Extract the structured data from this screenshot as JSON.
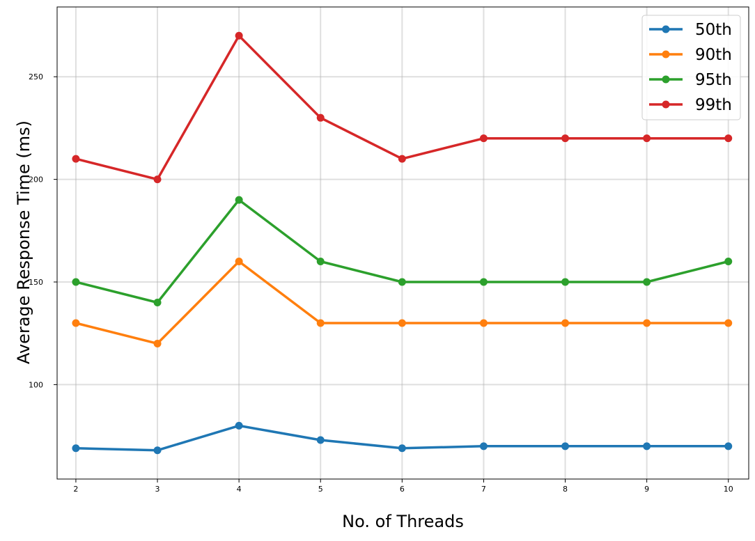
{
  "chart_data": {
    "type": "line",
    "title": "",
    "xlabel": "No. of Threads",
    "ylabel": "Average Response Time (ms)",
    "x": [
      2,
      3,
      4,
      5,
      6,
      7,
      8,
      9,
      10
    ],
    "xlim": [
      1.77,
      10.25
    ],
    "ylim": [
      54,
      284
    ],
    "xticks": [
      2,
      3,
      4,
      5,
      6,
      7,
      8,
      9,
      10
    ],
    "yticks": [
      100,
      150,
      200,
      250
    ],
    "grid": true,
    "legend_position": "top-right",
    "series": [
      {
        "name": "50th",
        "color": "#1f77b4",
        "values": [
          69,
          68,
          80,
          73,
          69,
          70,
          70,
          70,
          70
        ]
      },
      {
        "name": "90th",
        "color": "#ff7f0e",
        "values": [
          130,
          120,
          160,
          130,
          130,
          130,
          130,
          130,
          130
        ]
      },
      {
        "name": "95th",
        "color": "#2ca02c",
        "values": [
          150,
          140,
          190,
          160,
          150,
          150,
          150,
          150,
          160
        ]
      },
      {
        "name": "99th",
        "color": "#d62728",
        "values": [
          210,
          200,
          270,
          230,
          210,
          220,
          220,
          220,
          220
        ]
      }
    ]
  }
}
